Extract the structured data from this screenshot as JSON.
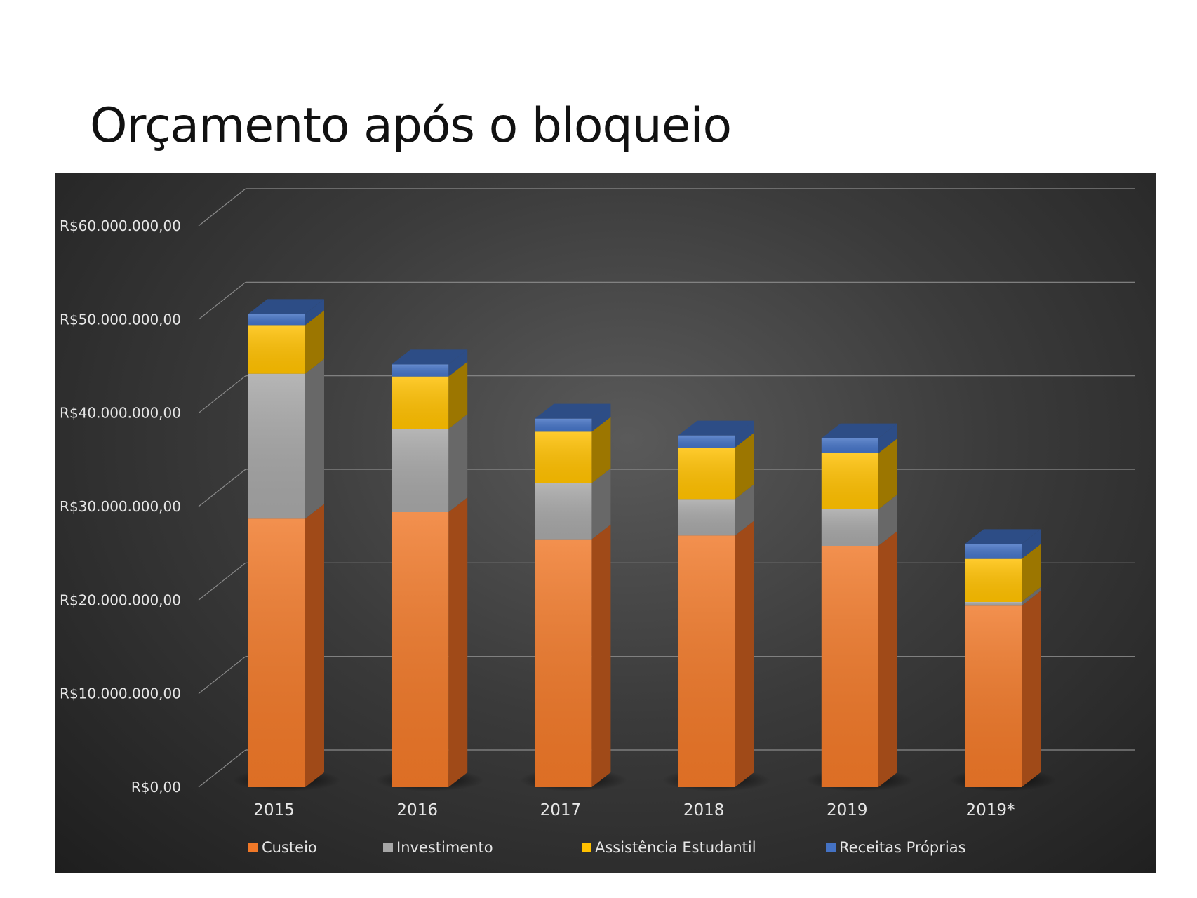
{
  "slide": {
    "title": "Orçamento após o bloqueio"
  },
  "chart_data": {
    "type": "bar",
    "stacked": true,
    "three_d": true,
    "title": "",
    "xlabel": "",
    "ylabel": "",
    "ylim": [
      0,
      60000000
    ],
    "yticks": [
      0,
      10000000,
      20000000,
      30000000,
      40000000,
      50000000,
      60000000
    ],
    "ytick_labels": [
      "R$0,00",
      "R$10.000.000,00",
      "R$20.000.000,00",
      "R$30.000.000,00",
      "R$40.000.000,00",
      "R$50.000.000,00",
      "R$60.000.000,00"
    ],
    "grid": true,
    "legend_position": "bottom",
    "categories": [
      "2015",
      "2016",
      "2017",
      "2018",
      "2019",
      "2019*"
    ],
    "series": [
      {
        "name": "Custeio",
        "color": "#f07828",
        "side_color": "#a04a18",
        "values": [
          28700000,
          29400000,
          26500000,
          26900000,
          25800000,
          19400000
        ]
      },
      {
        "name": "Investimento",
        "color": "#a6a6a6",
        "side_color": "#686868",
        "values": [
          15500000,
          8900000,
          6000000,
          3900000,
          3900000,
          400000
        ]
      },
      {
        "name": "Assistência Estudantil",
        "color": "#ffc000",
        "side_color": "#9c7600",
        "values": [
          5200000,
          5600000,
          5500000,
          5500000,
          6000000,
          4600000
        ]
      },
      {
        "name": "Receitas Próprias",
        "color": "#4472c4",
        "side_color": "#2d4d86",
        "values": [
          1200000,
          1300000,
          1400000,
          1300000,
          1600000,
          1600000
        ]
      }
    ]
  }
}
